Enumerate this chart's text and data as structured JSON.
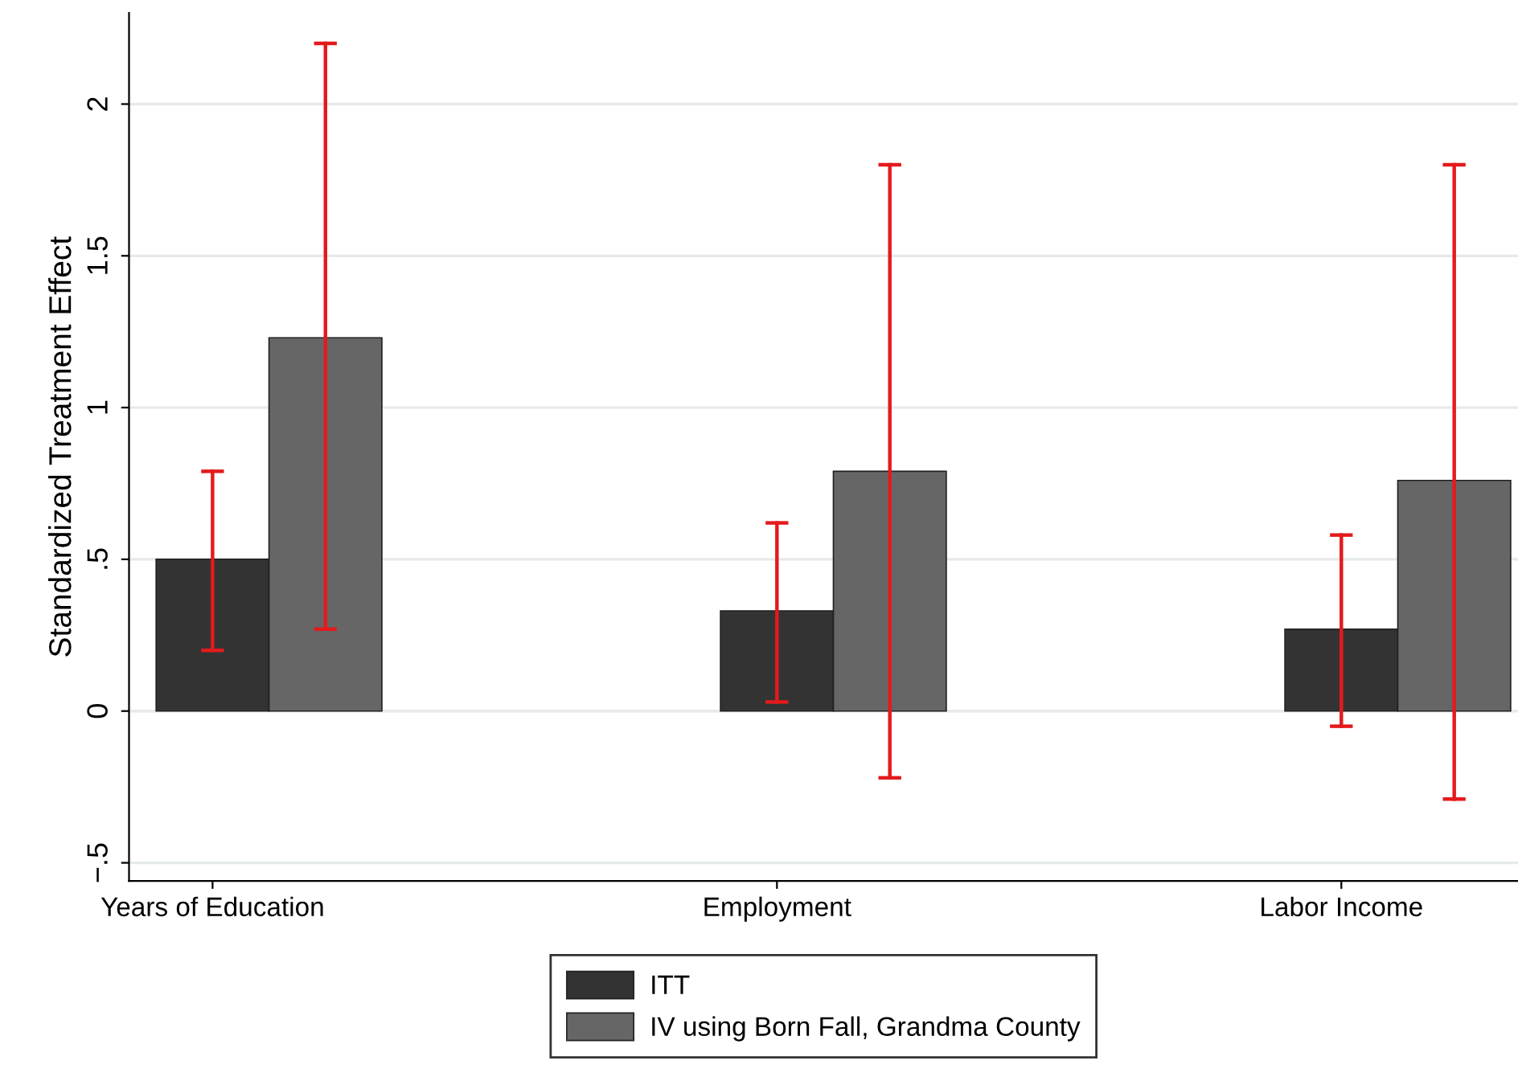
{
  "chart_data": {
    "type": "bar",
    "ylabel": "Standardized Treatment Effect",
    "categories": [
      "Years of Education",
      "Employment",
      "Labor Income"
    ],
    "series": [
      {
        "name": "ITT",
        "color": "#333333",
        "values": [
          0.5,
          0.33,
          0.27
        ],
        "errors": [
          [
            0.2,
            0.79
          ],
          [
            0.03,
            0.62
          ],
          [
            -0.05,
            0.58
          ]
        ]
      },
      {
        "name": "IV using Born Fall, Grandma County",
        "color": "#666666",
        "values": [
          1.23,
          0.79,
          0.76
        ],
        "errors": [
          [
            0.27,
            2.2
          ],
          [
            -0.22,
            1.8
          ],
          [
            -0.29,
            1.8
          ]
        ]
      }
    ],
    "ylim": [
      -0.56,
      2.3
    ],
    "yticks": [
      {
        "value": -0.5,
        "label": "−.5"
      },
      0,
      {
        "value": 0.5,
        "label": ".5"
      },
      1,
      1.5,
      2
    ],
    "grid": "y",
    "legend": "bottom"
  }
}
